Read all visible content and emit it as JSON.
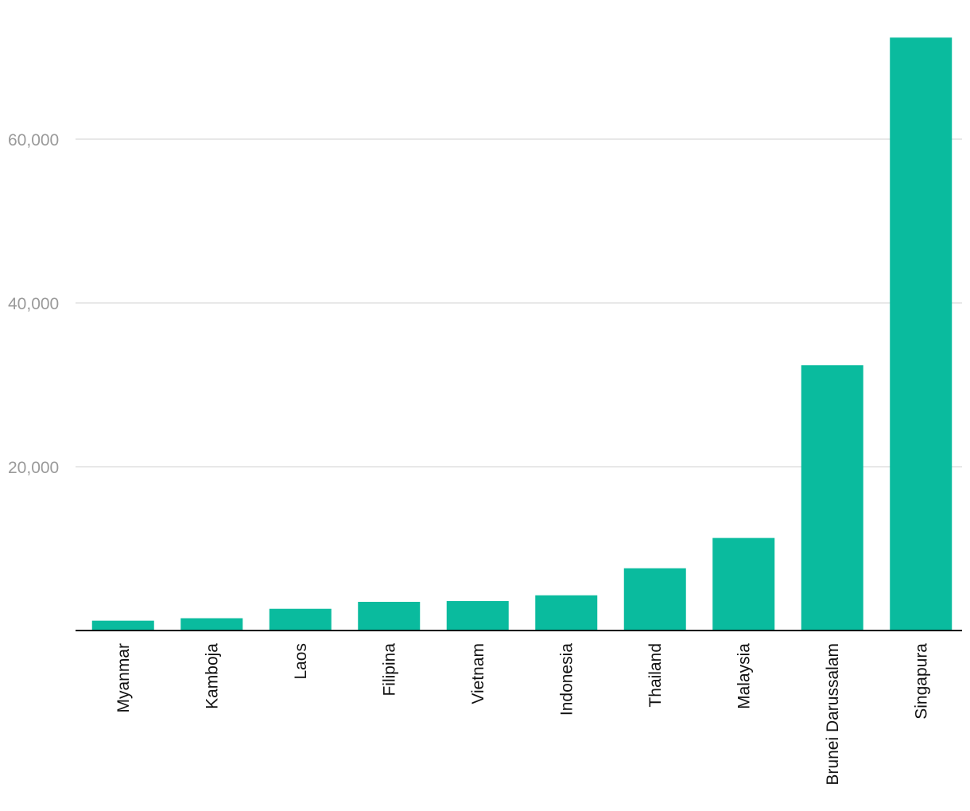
{
  "chart_data": {
    "type": "bar",
    "title": "",
    "xlabel": "",
    "ylabel": "",
    "categories": [
      "Myanmar",
      "Kamboja",
      "Laos",
      "Filipina",
      "Vietnam",
      "Indonesia",
      "Thailand",
      "Malaysia",
      "Brunei Darussalam",
      "Singapura"
    ],
    "values": [
      1200,
      1500,
      2650,
      3500,
      3600,
      4300,
      7600,
      11300,
      32400,
      72400
    ],
    "ylim": [
      0,
      75000
    ],
    "yticks": [
      20000,
      40000,
      60000
    ],
    "ytick_labels": [
      "20,000",
      "40,000",
      "60,000"
    ],
    "grid": true,
    "legend": "none",
    "bar_color": "#0abb9e"
  }
}
